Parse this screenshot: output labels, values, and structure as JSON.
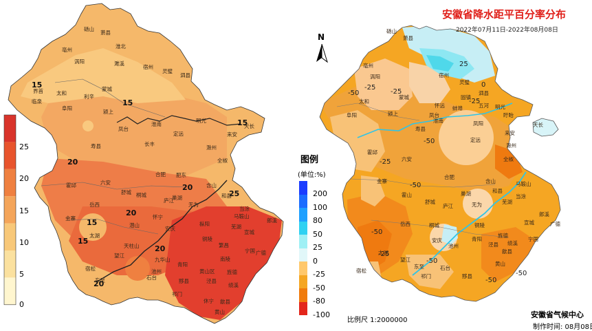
{
  "title": "安徽省降水距平百分率分布",
  "date_range": "2022年07月11日-2022年08月08日",
  "legend": {
    "title": "图例",
    "unit": "(单位:%)",
    "items": [
      {
        "label": "200",
        "color": "#1a3cff"
      },
      {
        "label": "100",
        "color": "#1b6cff"
      },
      {
        "label": "80",
        "color": "#1ea0ff"
      },
      {
        "label": "50",
        "color": "#2fd1f2"
      },
      {
        "label": "25",
        "color": "#9ff0f5"
      },
      {
        "label": "0",
        "color": "#e1f7f9"
      },
      {
        "label": "-25",
        "color": "#ffc86c"
      },
      {
        "label": "-50",
        "color": "#f5a623"
      },
      {
        "label": "-80",
        "color": "#f07b0c"
      },
      {
        "label": "-100",
        "color": "#e3261b"
      }
    ]
  },
  "colorbar": {
    "ticks": [
      "25",
      "20",
      "15",
      "10",
      "5",
      "0"
    ],
    "colors": [
      "#d9342b",
      "#e8542d",
      "#ef8040",
      "#f4a55a",
      "#f8c879",
      "#fbe19f",
      "#fff6cf"
    ]
  },
  "left_contour_labels": [
    "15",
    "15",
    "15",
    "20",
    "20",
    "20",
    "15",
    "15",
    "25",
    "20",
    "20"
  ],
  "right_contour_labels": [
    "-50",
    "-25",
    "-25",
    "25",
    "0",
    "-25",
    "-50",
    "-25",
    "-50",
    "-50",
    "-50",
    "-50",
    "-25",
    "-50"
  ],
  "left_places": [
    "砀山",
    "萧县",
    "淮北",
    "濉溪",
    "宿州",
    "灵璧",
    "泗县",
    "亳州",
    "涡阳",
    "蒙城",
    "利辛",
    "太和",
    "界首",
    "临泉",
    "阜阳",
    "颍上",
    "凤台",
    "淮南",
    "寿县",
    "长丰",
    "定远",
    "明光",
    "天长",
    "滁州",
    "来安",
    "全椒",
    "霍邱",
    "金寨",
    "六安",
    "舒城",
    "合肥",
    "肥东",
    "巢湖",
    "含山",
    "和县",
    "马鞍山",
    "芜湖",
    "当涂",
    "宣城",
    "郎溪",
    "广德",
    "宁国",
    "绩溪",
    "黄山",
    "歙县",
    "休宁",
    "祁门",
    "黟县",
    "石台",
    "东至",
    "池州",
    "青阳",
    "铜陵",
    "枞阳",
    "安庆",
    "怀宁",
    "潜山",
    "太湖",
    "望江",
    "宿松",
    "岳西",
    "桐城",
    "庐江",
    "无为",
    "繁昌",
    "南陵",
    "泾县",
    "旌德",
    "黄山区",
    "九华山",
    "天柱山"
  ],
  "right_places": [
    "砀山",
    "萧县",
    "宿州",
    "灵璧",
    "泗县",
    "固镇",
    "五河",
    "蚌埠",
    "怀远",
    "凤阳",
    "明光",
    "盱眙",
    "天长",
    "亳州",
    "涡阳",
    "蒙城",
    "太和",
    "阜阳",
    "颍上",
    "寿县",
    "淮南",
    "凤台",
    "霍邱",
    "六安",
    "金寨",
    "霍山",
    "舒城",
    "合肥",
    "定远",
    "滁州",
    "全椒",
    "来安",
    "巢湖",
    "含山",
    "和县",
    "庐江",
    "无为",
    "马鞍山",
    "芜湖",
    "当涂",
    "宣城",
    "广德",
    "郎溪",
    "宁国",
    "桐城",
    "安庆",
    "岳西",
    "太湖",
    "望江",
    "宿松",
    "东至",
    "池州",
    "青阳",
    "铜陵",
    "石台",
    "祁门",
    "黟县",
    "黄山",
    "歙县",
    "旌德",
    "泾县",
    "绩溪"
  ],
  "north_symbol": "N",
  "scale": "比例尺 1:2000000",
  "center": "安徽省气候中心",
  "made_time": "制作时间: 08月08日"
}
